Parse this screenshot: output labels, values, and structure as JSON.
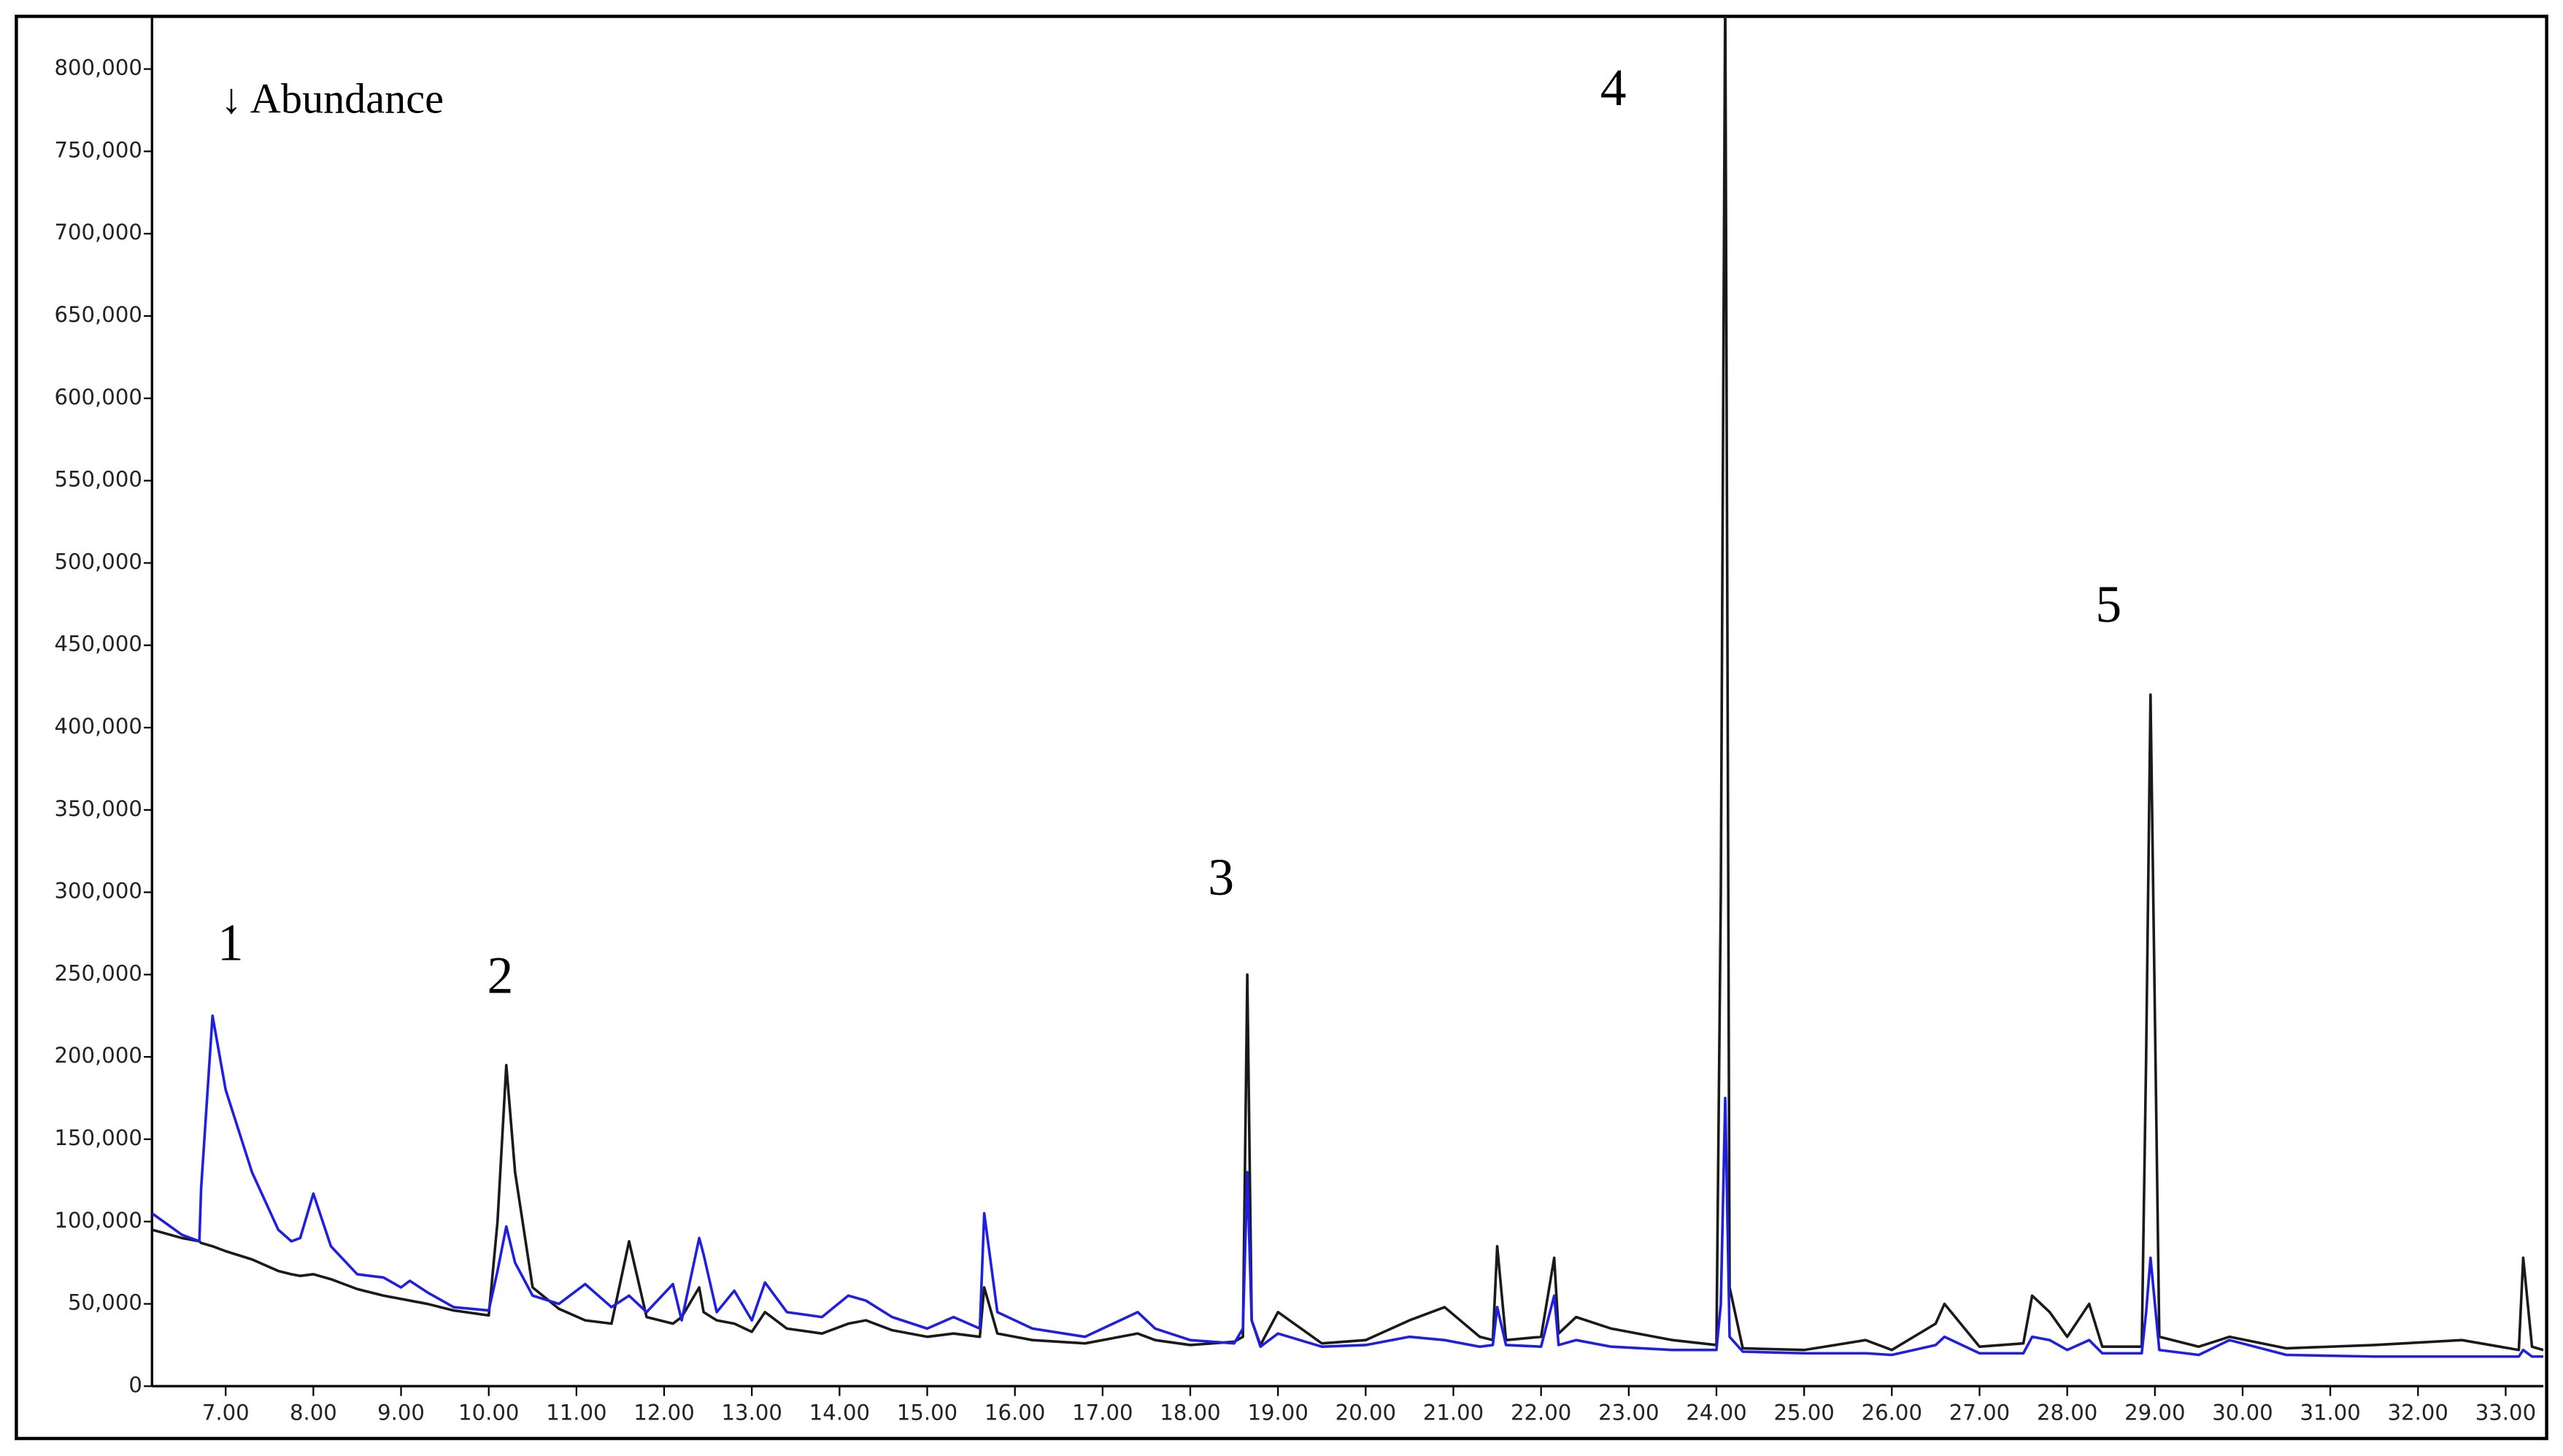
{
  "chart_data": {
    "type": "line",
    "annotations": [
      "↓ Abundance",
      "1",
      "2",
      "3",
      "4",
      "5"
    ],
    "x": [
      6.16,
      6.5,
      6.7,
      6.72,
      6.85,
      7.0,
      7.3,
      7.6,
      7.75,
      7.85,
      8.0,
      8.2,
      8.5,
      8.8,
      9.0,
      9.1,
      9.3,
      9.6,
      10.0,
      10.1,
      10.2,
      10.3,
      10.5,
      10.8,
      11.1,
      11.4,
      11.6,
      11.8,
      12.1,
      12.2,
      12.4,
      12.45,
      12.6,
      12.8,
      13.0,
      13.15,
      13.4,
      13.8,
      14.1,
      14.3,
      14.6,
      15.0,
      15.3,
      15.6,
      15.65,
      15.8,
      16.2,
      16.8,
      17.4,
      17.6,
      18.0,
      18.5,
      18.6,
      18.65,
      18.7,
      18.8,
      19.0,
      19.5,
      20.0,
      20.5,
      20.9,
      21.3,
      21.45,
      21.5,
      21.6,
      22.0,
      22.15,
      22.2,
      22.4,
      22.8,
      23.5,
      24.0,
      24.05,
      24.1,
      24.15,
      24.3,
      25.0,
      25.7,
      26.0,
      26.5,
      26.6,
      27.0,
      27.5,
      27.6,
      27.8,
      28.0,
      28.25,
      28.4,
      28.85,
      28.9,
      28.95,
      29.05,
      29.5,
      29.85,
      30.5,
      31.5,
      32.5,
      33.15,
      33.2,
      33.3,
      33.43
    ],
    "series": [
      {
        "color": "#1a1a1a",
        "values": [
          95000,
          90000,
          88000,
          87000,
          85000,
          82000,
          77000,
          70000,
          68000,
          67000,
          68000,
          65000,
          59000,
          55000,
          53000,
          52000,
          50000,
          46000,
          43000,
          100000,
          195000,
          130000,
          60000,
          47000,
          40000,
          38000,
          88000,
          42000,
          38000,
          42000,
          60000,
          45000,
          40000,
          38000,
          33000,
          45000,
          35000,
          32000,
          38000,
          40000,
          34000,
          30000,
          32000,
          30000,
          60000,
          32000,
          28000,
          26000,
          32000,
          28000,
          25000,
          27000,
          30000,
          250000,
          40000,
          25000,
          45000,
          26000,
          28000,
          40000,
          48000,
          30000,
          28000,
          85000,
          28000,
          30000,
          78000,
          32000,
          42000,
          35000,
          28000,
          25000,
          300000,
          850000,
          60000,
          23000,
          22000,
          28000,
          22000,
          38000,
          50000,
          24000,
          26000,
          55000,
          45000,
          30000,
          50000,
          24000,
          24000,
          200000,
          420000,
          30000,
          24000,
          30000,
          23000,
          25000,
          28000,
          22000,
          78000,
          24000,
          22000
        ]
      },
      {
        "color": "#1f1fe0",
        "values": [
          105000,
          92000,
          88000,
          120000,
          225000,
          180000,
          130000,
          95000,
          88000,
          90000,
          117000,
          85000,
          68000,
          66000,
          60000,
          64000,
          57000,
          48000,
          46000,
          70000,
          97000,
          75000,
          55000,
          50000,
          62000,
          48000,
          55000,
          45000,
          62000,
          40000,
          90000,
          80000,
          45000,
          58000,
          40000,
          63000,
          45000,
          42000,
          55000,
          52000,
          42000,
          35000,
          42000,
          35000,
          105000,
          45000,
          35000,
          30000,
          45000,
          35000,
          28000,
          26000,
          35000,
          130000,
          40000,
          24000,
          32000,
          24000,
          25000,
          30000,
          28000,
          24000,
          25000,
          48000,
          25000,
          24000,
          55000,
          25000,
          28000,
          24000,
          22000,
          22000,
          50000,
          175000,
          30000,
          21000,
          20000,
          20000,
          19000,
          25000,
          30000,
          20000,
          20000,
          30000,
          28000,
          22000,
          28000,
          20000,
          20000,
          45000,
          78000,
          22000,
          19000,
          28000,
          19000,
          18000,
          18000,
          18000,
          22000,
          18000,
          18000
        ]
      }
    ],
    "xlim": [
      6.16,
      33.43
    ],
    "ylim": [
      0,
      832000
    ],
    "xticks": [
      {
        "value": 7,
        "label": "7.00"
      },
      {
        "value": 8,
        "label": "8.00"
      },
      {
        "value": 9,
        "label": "9.00"
      },
      {
        "value": 10,
        "label": "10.00"
      },
      {
        "value": 11,
        "label": "11.00"
      },
      {
        "value": 12,
        "label": "12.00"
      },
      {
        "value": 13,
        "label": "13.00"
      },
      {
        "value": 14,
        "label": "14.00"
      },
      {
        "value": 15,
        "label": "15.00"
      },
      {
        "value": 16,
        "label": "16.00"
      },
      {
        "value": 17,
        "label": "17.00"
      },
      {
        "value": 18,
        "label": "18.00"
      },
      {
        "value": 19,
        "label": "19.00"
      },
      {
        "value": 20,
        "label": "20.00"
      },
      {
        "value": 21,
        "label": "21.00"
      },
      {
        "value": 22,
        "label": "22.00"
      },
      {
        "value": 23,
        "label": "23.00"
      },
      {
        "value": 24,
        "label": "24.00"
      },
      {
        "value": 25,
        "label": "25.00"
      },
      {
        "value": 26,
        "label": "26.00"
      },
      {
        "value": 27,
        "label": "27.00"
      },
      {
        "value": 28,
        "label": "28.00"
      },
      {
        "value": 29,
        "label": "29.00"
      },
      {
        "value": 30,
        "label": "30.00"
      },
      {
        "value": 31,
        "label": "31.00"
      },
      {
        "value": 32,
        "label": "32.00"
      },
      {
        "value": 33,
        "label": "33.00"
      }
    ],
    "yticks": [
      0,
      {
        "value": 50000,
        "label": "50,000"
      },
      {
        "value": 100000,
        "label": "100,000"
      },
      {
        "value": 150000,
        "label": "150,000"
      },
      {
        "value": 200000,
        "label": "200,000"
      },
      {
        "value": 250000,
        "label": "250,000"
      },
      {
        "value": 300000,
        "label": "300,000"
      },
      {
        "value": 350000,
        "label": "350,000"
      },
      {
        "value": 400000,
        "label": "400,000"
      },
      {
        "value": 450000,
        "label": "450,000"
      },
      {
        "value": 500000,
        "label": "500,000"
      },
      {
        "value": 550000,
        "label": "550,000"
      },
      {
        "value": 600000,
        "label": "600,000"
      },
      {
        "value": 650000,
        "label": "650,000"
      },
      {
        "value": 700000,
        "label": "700,000"
      },
      {
        "value": 750000,
        "label": "750,000"
      },
      {
        "value": 800000,
        "label": "800,000"
      }
    ]
  }
}
